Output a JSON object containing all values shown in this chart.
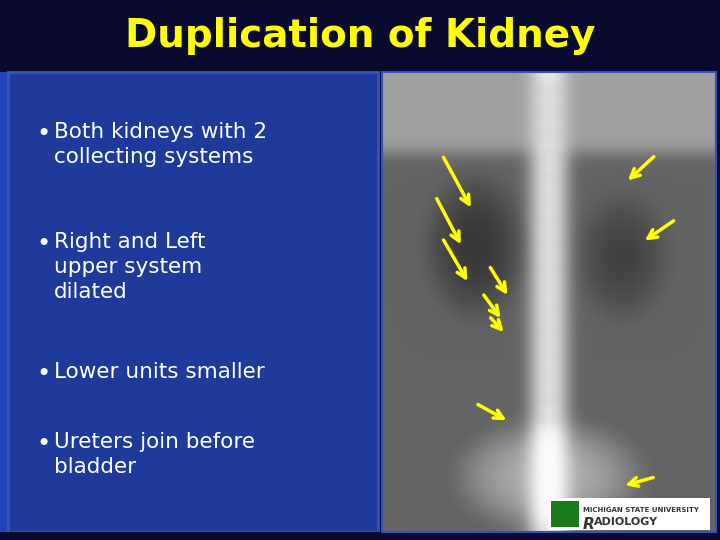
{
  "title": "Duplication of Kidney",
  "title_color": "#FFFF00",
  "title_fontsize": 28,
  "bg_color": "#0a0a2e",
  "content_bg": "#1e3a9a",
  "bullet_points": [
    "Both kidneys with 2\ncollecting systems",
    "Right and Left\nupper system\ndilated",
    "Lower units smaller",
    "Ureters join before\nbladder"
  ],
  "bullet_color": "#ffffff",
  "bullet_fontsize": 15.5,
  "arrow_color": "#FFFF00",
  "border_color": "#3355bb",
  "xray_bg": "#888888",
  "logo_green": "#1a7a1a"
}
